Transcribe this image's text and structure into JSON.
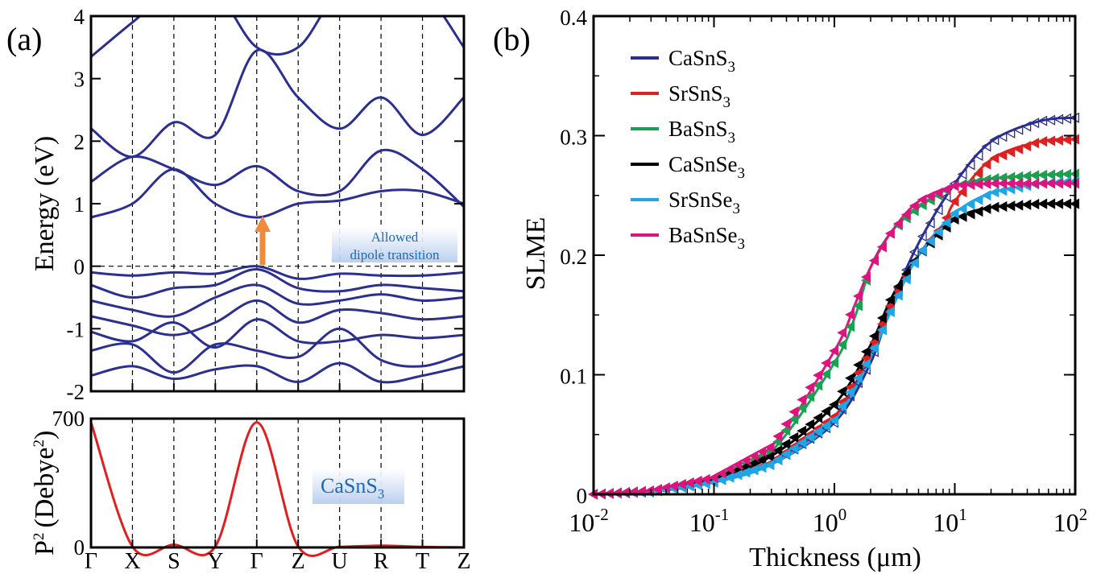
{
  "panel_a_tag": "(a)",
  "panel_b_tag": "(b)",
  "chart_data": [
    {
      "type": "line",
      "panel": "(a) top — band structure",
      "ylabel": "Energy (eV)",
      "ylim": [
        -2,
        4
      ],
      "yticks": [
        -2,
        -1,
        0,
        1,
        2,
        3,
        4
      ],
      "categories": [
        "Γ",
        "X",
        "S",
        "Y",
        "Γ",
        "Z",
        "U",
        "R",
        "T",
        "Z"
      ],
      "grid": "dashed vertical lines at high-symmetry points, dashed line at 0 eV",
      "annotation": {
        "line1": "Allowed",
        "line2": "dipole transition"
      },
      "arrow": {
        "at": "Γ",
        "from_energy": 0,
        "to_energy": 0.78,
        "color": "#f08a3c"
      },
      "line_color": "#2b2f8f",
      "bands": [
        {
          "values": [
            3.35,
            3.9,
            4.4,
            4.4,
            3.5,
            3.5,
            4.4,
            4.4,
            4.4,
            3.5
          ]
        },
        {
          "values": [
            2.2,
            1.75,
            2.3,
            2.1,
            3.45,
            2.7,
            2.2,
            2.7,
            2.1,
            2.7
          ]
        },
        {
          "values": [
            1.35,
            1.75,
            1.55,
            1.3,
            1.6,
            1.2,
            1.2,
            1.85,
            1.55,
            0.95
          ]
        },
        {
          "values": [
            0.78,
            1.0,
            1.55,
            1.0,
            0.78,
            1.0,
            1.05,
            1.2,
            1.2,
            1.0
          ]
        },
        {
          "values": [
            -0.1,
            -0.15,
            -0.1,
            -0.12,
            0.0,
            -0.2,
            -0.12,
            -0.15,
            -0.15,
            -0.1
          ]
        },
        {
          "values": [
            -0.3,
            -0.5,
            -0.35,
            -0.3,
            -0.05,
            -0.35,
            -0.4,
            -0.3,
            -0.35,
            -0.4
          ]
        },
        {
          "values": [
            -0.55,
            -0.7,
            -0.8,
            -0.5,
            -0.3,
            -0.6,
            -0.55,
            -0.45,
            -0.55,
            -0.5
          ]
        },
        {
          "values": [
            -0.8,
            -0.95,
            -1.1,
            -0.9,
            -0.55,
            -0.9,
            -0.7,
            -0.75,
            -0.85,
            -0.8
          ]
        },
        {
          "values": [
            -1.05,
            -1.2,
            -0.9,
            -1.3,
            -0.85,
            -1.2,
            -1.2,
            -1.1,
            -1.15,
            -1.1
          ]
        },
        {
          "values": [
            -1.35,
            -1.25,
            -1.7,
            -1.25,
            -1.35,
            -1.45,
            -1.0,
            -1.5,
            -1.6,
            -1.4
          ]
        },
        {
          "values": [
            -1.75,
            -1.6,
            -1.8,
            -1.65,
            -1.6,
            -1.85,
            -1.55,
            -1.85,
            -1.75,
            -1.6
          ]
        }
      ]
    },
    {
      "type": "line",
      "panel": "(a) bottom — transition dipole",
      "ylabel": "P² (Debye²)",
      "ylabel_main": "P",
      "ylabel_sup": "2",
      "ylabel_open": "(Debye",
      "ylabel_sup2": "2",
      "ylabel_close": ")",
      "ylim": [
        0,
        700
      ],
      "yticks": [
        0,
        700
      ],
      "categories": [
        "Γ",
        "X",
        "S",
        "Y",
        "Γ",
        "Z",
        "U",
        "R",
        "T",
        "Z"
      ],
      "label_box": {
        "main": "CaSnS",
        "sub": "3"
      },
      "line_color": "#e02020",
      "values": [
        680,
        5,
        15,
        5,
        680,
        5,
        3,
        10,
        3,
        0
      ]
    },
    {
      "type": "line",
      "panel": "(b)",
      "xlabel": "Thickness (μm)",
      "ylabel": "SLME",
      "xscale": "log",
      "xlim": [
        0.01,
        100
      ],
      "ylim": [
        0,
        0.4
      ],
      "xticks": [
        {
          "base": "10",
          "exp": "-2"
        },
        {
          "base": "10",
          "exp": "-1"
        },
        {
          "base": "10",
          "exp": "0"
        },
        {
          "base": "10",
          "exp": "1"
        },
        {
          "base": "10",
          "exp": "2"
        }
      ],
      "yticks": [
        "0",
        "0.1",
        "0.2",
        "0.3",
        "0.4"
      ],
      "legend_position": "top-left",
      "series": [
        {
          "name": "CaSnS₃",
          "main": "CaSnS",
          "sub": "3",
          "color": "#2b2f8f",
          "marker": "left-triangle",
          "x": [
            0.01,
            0.03,
            0.1,
            0.3,
            1,
            2,
            3,
            5,
            10,
            20,
            50,
            100
          ],
          "y": [
            0.0,
            0.002,
            0.01,
            0.025,
            0.06,
            0.11,
            0.16,
            0.21,
            0.26,
            0.295,
            0.312,
            0.315
          ]
        },
        {
          "name": "SrSnS₃",
          "main": "SrSnS",
          "sub": "3",
          "color": "#e02020",
          "marker": "left-triangle",
          "x": [
            0.01,
            0.03,
            0.1,
            0.3,
            1,
            2,
            3,
            5,
            8,
            10,
            20,
            50,
            100
          ],
          "y": [
            0.0,
            0.002,
            0.01,
            0.026,
            0.065,
            0.12,
            0.16,
            0.2,
            0.225,
            0.245,
            0.28,
            0.295,
            0.297
          ]
        },
        {
          "name": "BaSnS₃",
          "main": "BaSnS",
          "sub": "3",
          "color": "#1aa050",
          "marker": "left-triangle",
          "x": [
            0.01,
            0.03,
            0.1,
            0.3,
            1,
            1.5,
            2,
            3,
            5,
            10,
            20,
            50,
            100
          ],
          "y": [
            0.0,
            0.003,
            0.013,
            0.036,
            0.11,
            0.15,
            0.19,
            0.22,
            0.24,
            0.258,
            0.264,
            0.267,
            0.268
          ]
        },
        {
          "name": "CaSnSe₃",
          "main": "CaSnSe",
          "sub": "3",
          "color": "#000000",
          "marker": "left-triangle",
          "x": [
            0.01,
            0.03,
            0.1,
            0.3,
            1,
            2,
            3,
            5,
            10,
            20,
            50,
            100
          ],
          "y": [
            0.0,
            0.002,
            0.012,
            0.032,
            0.075,
            0.125,
            0.165,
            0.2,
            0.23,
            0.24,
            0.243,
            0.243
          ]
        },
        {
          "name": "SrSnSe₃",
          "main": "SrSnSe",
          "sub": "3",
          "color": "#1ea7e8",
          "marker": "left-triangle",
          "x": [
            0.01,
            0.03,
            0.1,
            0.3,
            1,
            2,
            3,
            5,
            10,
            20,
            50,
            100
          ],
          "y": [
            0.0,
            0.002,
            0.01,
            0.025,
            0.062,
            0.115,
            0.155,
            0.2,
            0.235,
            0.252,
            0.26,
            0.262
          ]
        },
        {
          "name": "BaSnSe₃",
          "main": "BaSnSe",
          "sub": "3",
          "color": "#e0127e",
          "marker": "left-triangle",
          "x": [
            0.01,
            0.03,
            0.1,
            0.3,
            1,
            1.5,
            2,
            3,
            5,
            10,
            20,
            50,
            100
          ],
          "y": [
            0.0,
            0.003,
            0.014,
            0.04,
            0.12,
            0.16,
            0.19,
            0.22,
            0.245,
            0.258,
            0.26,
            0.26,
            0.26
          ]
        }
      ]
    }
  ]
}
